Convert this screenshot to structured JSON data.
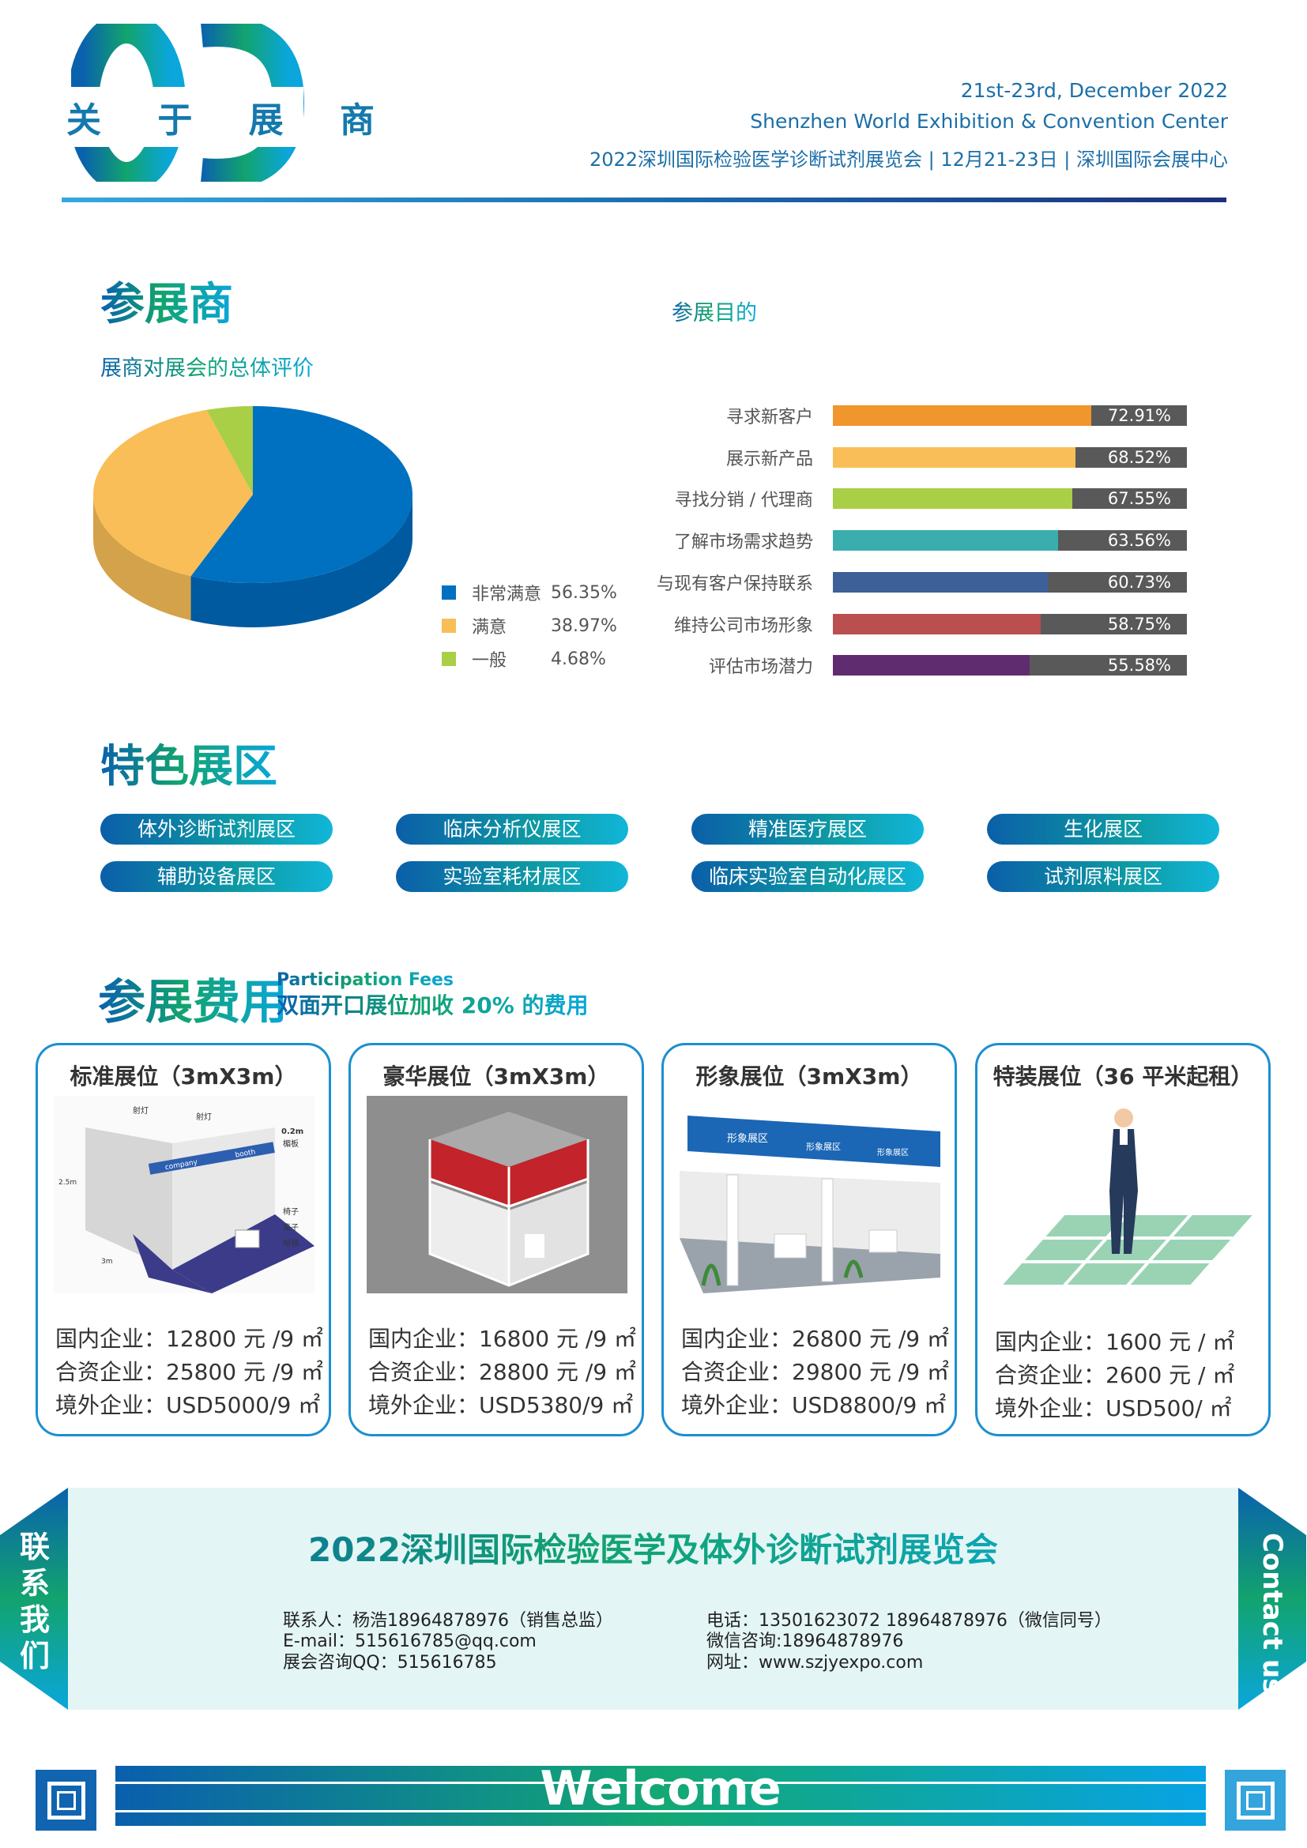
{
  "header": {
    "section_number": "03",
    "section_title": "关 于 展 商",
    "date_en": "21st-23rd, December 2022",
    "venue_en": "Shenzhen World Exhibition & Convention Center",
    "event_line": "2022深圳国际检验医学诊断试剂展览会 | 12月21-23日 | 深圳国际会展中心"
  },
  "exhibitors": {
    "title": "参展商",
    "pie_title": "展商对展会的总体评价",
    "bar_title": "参展目的"
  },
  "chart_data": [
    {
      "type": "pie",
      "title": "展商对展会的总体评价",
      "style": "3d",
      "categories": [
        "非常满意",
        "满意",
        "一般"
      ],
      "values": [
        56.35,
        38.97,
        4.68
      ],
      "value_labels": [
        "56.35%",
        "38.97%",
        "4.68%"
      ],
      "colors": [
        "#0070c0",
        "#f9be57",
        "#a9cf46"
      ],
      "legend": "bottom-right"
    },
    {
      "type": "bar",
      "orientation": "horizontal",
      "title": "参展目的",
      "categories": [
        "寻求新客户",
        "展示新产品",
        "寻找分销 / 代理商",
        "了解市场需求趋势",
        "与现有客户保持联系",
        "维持公司市场形象",
        "评估市场潜力"
      ],
      "values": [
        72.91,
        68.52,
        67.55,
        63.56,
        60.73,
        58.75,
        55.58
      ],
      "value_labels": [
        "72.91%",
        "68.52%",
        "67.55%",
        "63.56%",
        "60.73%",
        "58.75%",
        "55.58%"
      ],
      "colors": [
        "#f1952d",
        "#f9be57",
        "#a9cf46",
        "#3aaeae",
        "#3d6098",
        "#ba4f4f",
        "#602c70"
      ],
      "track_color": "#595959",
      "xlim": [
        0,
        100
      ]
    }
  ],
  "zones": {
    "title": "特色展区",
    "items": [
      "体外诊断试剂展区",
      "临床分析仪展区",
      "精准医疗展区",
      "生化展区",
      "辅助设备展区",
      "实验室耗材展区",
      "临床实验室自动化展区",
      "试剂原料展区"
    ]
  },
  "fees": {
    "title": "参展费用",
    "title_en": "Participation Fees",
    "note": "双面开口展位加收 20% 的费用",
    "cards": [
      {
        "title": "标准展位（3mX3m）",
        "image": "standard-booth",
        "image_labels": [
          "射灯",
          "射灯",
          "0.2m",
          "楣板",
          "2.5m",
          "椅子",
          "桌子",
          "地毯",
          "3m",
          "company",
          "booth"
        ],
        "prices": [
          "国内企业：12800 元 /9 ㎡",
          "合资企业：25800 元 /9 ㎡",
          "境外企业：USD5000/9 ㎡"
        ]
      },
      {
        "title": "豪华展位（3mX3m）",
        "image": "luxury-booth",
        "prices": [
          "国内企业：16800 元 /9 ㎡",
          "合资企业：28800 元 /9 ㎡",
          "境外企业：USD5380/9 ㎡"
        ]
      },
      {
        "title": "形象展位（3mX3m）",
        "image": "image-booth",
        "image_labels": [
          "形象展区",
          "形象展区",
          "形象展区"
        ],
        "prices": [
          "国内企业：26800 元 /9 ㎡",
          "合资企业：29800 元 /9 ㎡",
          "境外企业：USD8800/9 ㎡"
        ]
      },
      {
        "title": "特装展位（36 平米起租）",
        "image": "raw-space-businessman",
        "prices": [
          "国内企业：1600 元 / ㎡",
          "合资企业：2600 元 / ㎡",
          "境外企业：USD500/ ㎡"
        ]
      }
    ]
  },
  "contact": {
    "side_left": "联系我们",
    "side_right": "Contact us",
    "title": "2022深圳国际检验医学及体外诊断试剂展览会",
    "left_lines": [
      "联系人：杨浩18964878976（销售总监）",
      "E-mail：515616785@qq.com",
      "展会咨询QQ：515616785"
    ],
    "right_lines": [
      "电话：13501623072   18964878976（微信同号）",
      "微信咨询:18964878976",
      "网址：www.szjyexpo.com"
    ]
  },
  "footer": {
    "welcome": "Welcome"
  },
  "colors": {
    "brand_blue": "#0a62ad",
    "brand_green": "#12a36e",
    "brand_cyan": "#0aa6dc",
    "contact_bg": "#e4f5f5"
  }
}
